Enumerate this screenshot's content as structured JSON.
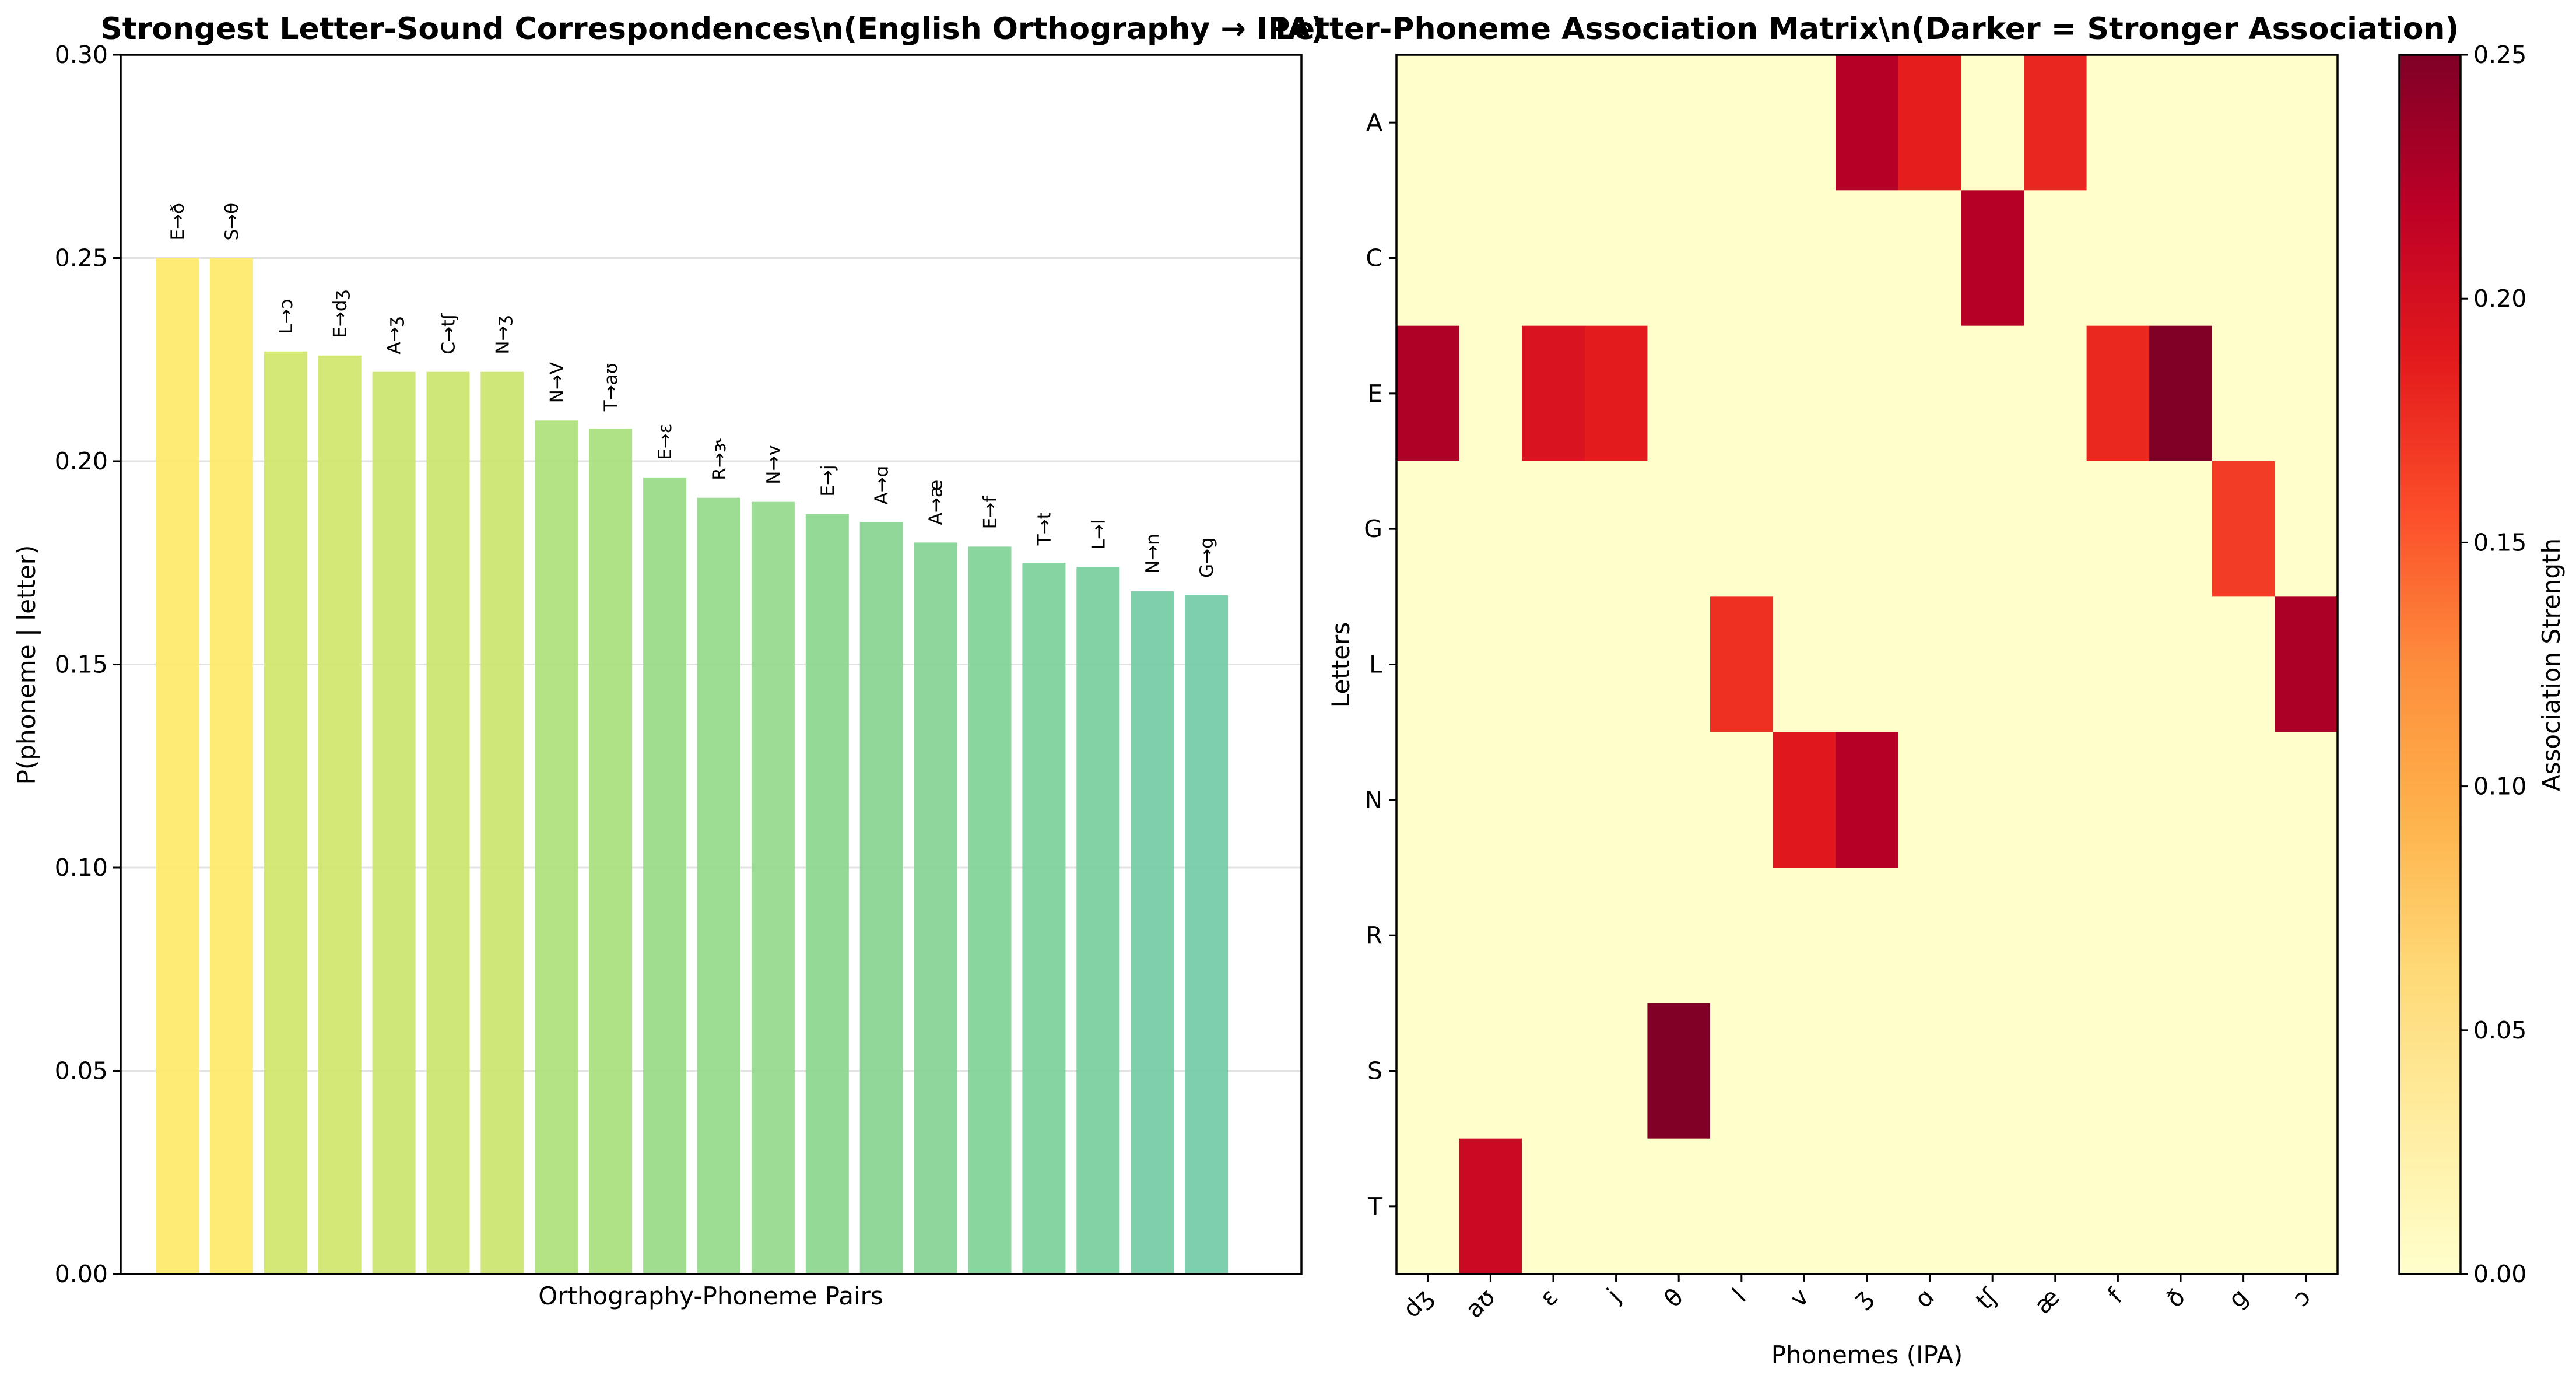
{
  "chart_data": [
    {
      "type": "bar",
      "title": "Strongest Letter-Sound Correspondences\\n(English Orthography → IPA)",
      "xlabel": "Orthography-Phoneme Pairs",
      "ylabel": "P(phoneme | letter)",
      "ylim": [
        0,
        0.3
      ],
      "yticks": [
        "0.00",
        "0.05",
        "0.10",
        "0.15",
        "0.20",
        "0.25",
        "0.30"
      ],
      "grid": true,
      "categories": [
        "E→ð",
        "S→θ",
        "L→ɔ",
        "E→dʒ",
        "A→ʒ",
        "C→tʃ",
        "N→ʒ",
        "N→V",
        "T→aʊ",
        "E→ɛ",
        "R→ɝ",
        "N→v",
        "E→j",
        "A→ɑ",
        "A→æ",
        "E→f",
        "T→t",
        "L→l",
        "N→n",
        "G→g"
      ],
      "values": [
        0.25,
        0.25,
        0.227,
        0.226,
        0.222,
        0.222,
        0.222,
        0.21,
        0.208,
        0.196,
        0.191,
        0.19,
        0.187,
        0.185,
        0.18,
        0.179,
        0.175,
        0.174,
        0.168,
        0.167
      ],
      "colors": [
        "#fde96a",
        "#fde96a",
        "#cfe66a",
        "#cfe66a",
        "#cbe46e",
        "#cbe46e",
        "#cbe46e",
        "#ade17a",
        "#a8df7c",
        "#98da86",
        "#95d98a",
        "#94d98b",
        "#8cd68e",
        "#88d491",
        "#83d294",
        "#80d297",
        "#7bd09a",
        "#78ce9e",
        "#74cca3",
        "#72cba6"
      ]
    },
    {
      "type": "heatmap",
      "title": "Letter-Phoneme Association Matrix\\n(Darker = Stronger Association)",
      "xlabel": "Phonemes (IPA)",
      "ylabel": "Letters",
      "colorbar_label": "Association Strength",
      "colorbar_range": [
        0,
        0.25
      ],
      "colorbar_ticks": [
        "0.00",
        "0.05",
        "0.10",
        "0.15",
        "0.20",
        "0.25"
      ],
      "x": [
        "dʒ",
        "aʊ",
        "ɛ",
        "j",
        "θ",
        "l",
        "v",
        "ʒ",
        "ɑ",
        "tʃ",
        "æ",
        "f",
        "ð",
        "g",
        "ɔ"
      ],
      "y": [
        "A",
        "C",
        "E",
        "G",
        "L",
        "N",
        "R",
        "S",
        "T"
      ],
      "values": [
        [
          0,
          0,
          0,
          0,
          0,
          0,
          0,
          0.222,
          0.185,
          0,
          0.18,
          0,
          0,
          0,
          0
        ],
        [
          0,
          0,
          0,
          0,
          0,
          0,
          0,
          0,
          0,
          0.222,
          0,
          0,
          0,
          0,
          0
        ],
        [
          0.226,
          0,
          0.196,
          0.187,
          0,
          0,
          0,
          0,
          0,
          0,
          0,
          0.179,
          0.25,
          0,
          0
        ],
        [
          0,
          0,
          0,
          0,
          0,
          0,
          0,
          0,
          0,
          0,
          0,
          0,
          0,
          0.167,
          0
        ],
        [
          0,
          0,
          0,
          0,
          0,
          0.174,
          0,
          0,
          0,
          0,
          0,
          0,
          0,
          0,
          0.227
        ],
        [
          0,
          0,
          0,
          0,
          0,
          0,
          0.19,
          0.222,
          0,
          0,
          0,
          0,
          0,
          0,
          0
        ],
        [
          0,
          0,
          0,
          0,
          0,
          0,
          0,
          0,
          0,
          0,
          0,
          0,
          0,
          0,
          0
        ],
        [
          0,
          0,
          0,
          0,
          0.25,
          0,
          0,
          0,
          0,
          0,
          0,
          0,
          0,
          0,
          0
        ],
        [
          0,
          0.208,
          0,
          0,
          0,
          0,
          0,
          0,
          0,
          0,
          0,
          0,
          0,
          0,
          0
        ]
      ],
      "colormap": "YlOrRd"
    }
  ]
}
